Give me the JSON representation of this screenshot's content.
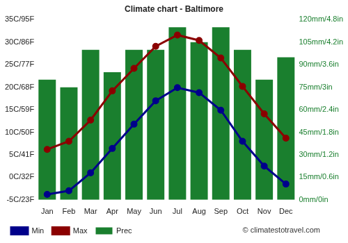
{
  "chart_data": {
    "type": "bar",
    "title": "Climate chart - Baltimore",
    "categories": [
      "Jan",
      "Feb",
      "Mar",
      "Apr",
      "May",
      "Jun",
      "Jul",
      "Aug",
      "Sep",
      "Oct",
      "Nov",
      "Dec"
    ],
    "series": [
      {
        "name": "Prec",
        "type": "bar",
        "axis": "y2",
        "color": "#1a7f2e",
        "values": [
          80,
          75,
          100,
          85,
          100,
          100,
          115,
          105,
          115,
          100,
          80,
          95
        ]
      },
      {
        "name": "Min",
        "type": "line",
        "color": "#00008b",
        "marker": "circle",
        "line_style": "solid",
        "values": [
          -3.8,
          -3.0,
          1.0,
          6.4,
          11.8,
          17.0,
          19.9,
          18.8,
          14.9,
          8.0,
          2.5,
          -1.5
        ]
      },
      {
        "name": "Max",
        "type": "line",
        "color": "#8b0000",
        "marker": "circle",
        "line_style": "solid",
        "values": [
          6.2,
          8.0,
          12.7,
          19.2,
          24.2,
          29.1,
          31.6,
          30.4,
          26.5,
          20.2,
          14.1,
          8.7
        ]
      }
    ],
    "ylim": [
      -5,
      35
    ],
    "yticks": [
      {
        "value": -5,
        "label": "-5C/23F"
      },
      {
        "value": 0,
        "label": "0C/32F"
      },
      {
        "value": 5,
        "label": "5C/41F"
      },
      {
        "value": 10,
        "label": "10C/50F"
      },
      {
        "value": 15,
        "label": "15C/59F"
      },
      {
        "value": 20,
        "label": "20C/68F"
      },
      {
        "value": 25,
        "label": "25C/77F"
      },
      {
        "value": 30,
        "label": "30C/86F"
      },
      {
        "value": 35,
        "label": "35C/95F"
      }
    ],
    "y2lim": [
      0,
      120
    ],
    "y2ticks": [
      {
        "value": 0,
        "label": "0mm/0in"
      },
      {
        "value": 15,
        "label": "15mm/0.6in"
      },
      {
        "value": 30,
        "label": "30mm/1.2in"
      },
      {
        "value": 45,
        "label": "45mm/1.8in"
      },
      {
        "value": 60,
        "label": "60mm/2.4in"
      },
      {
        "value": 75,
        "label": "75mm/3in"
      },
      {
        "value": 90,
        "label": "90mm/3.6in"
      },
      {
        "value": 105,
        "label": "105mm/4.2in"
      },
      {
        "value": 120,
        "label": "120mm/4.8in"
      }
    ],
    "grid": false,
    "legend": "bottom-left",
    "annotations": [
      "© climatestotravel.com"
    ]
  }
}
